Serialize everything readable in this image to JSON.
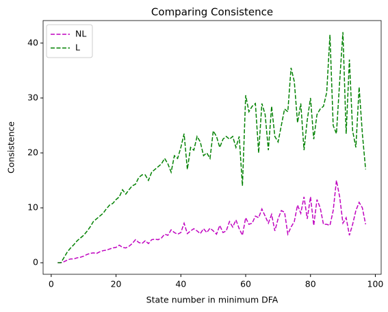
{
  "chart_data": {
    "type": "line",
    "title": "Comparing Consistence",
    "xlabel": "State number in minimum DFA",
    "ylabel": "Consistence",
    "x": [
      2,
      3,
      4,
      5,
      6,
      7,
      8,
      9,
      10,
      11,
      12,
      13,
      14,
      15,
      16,
      17,
      18,
      19,
      20,
      21,
      22,
      23,
      24,
      25,
      26,
      27,
      28,
      29,
      30,
      31,
      32,
      33,
      34,
      35,
      36,
      37,
      38,
      39,
      40,
      41,
      42,
      43,
      44,
      45,
      46,
      47,
      48,
      49,
      50,
      51,
      52,
      53,
      54,
      55,
      56,
      57,
      58,
      59,
      60,
      61,
      62,
      63,
      64,
      65,
      66,
      67,
      68,
      69,
      70,
      71,
      72,
      73,
      74,
      75,
      76,
      77,
      78,
      79,
      80,
      81,
      82,
      83,
      84,
      85,
      86,
      87,
      88,
      89,
      90,
      91,
      92,
      93,
      94,
      95,
      96,
      97
    ],
    "series": [
      {
        "name": "NL",
        "color": "#bf00bf",
        "values": [
          0,
          0,
          0.2,
          0.5,
          0.7,
          0.7,
          0.9,
          1,
          1.2,
          1.5,
          1.7,
          1.8,
          1.7,
          2,
          2.2,
          2.3,
          2.5,
          2.7,
          2.8,
          3.2,
          2.8,
          2.7,
          3,
          3.5,
          4.2,
          3.7,
          3.5,
          4,
          3.5,
          4.2,
          4.3,
          4.2,
          4.5,
          5.2,
          5,
          6,
          5.5,
          5.2,
          5.5,
          7.2,
          5.3,
          5.8,
          6.2,
          5.8,
          5.3,
          6.2,
          5.5,
          6.3,
          5.8,
          5.2,
          6.8,
          5.5,
          5.8,
          7.5,
          6.5,
          7.8,
          6.2,
          5,
          8.2,
          7,
          7.2,
          8.5,
          8.2,
          9.8,
          8.5,
          7.2,
          8.8,
          5.8,
          8,
          9.5,
          9.2,
          5.2,
          6.5,
          7.5,
          10.5,
          9,
          12,
          8,
          12,
          6.8,
          11.5,
          10,
          7,
          7,
          6.8,
          9.5,
          15,
          12,
          7.2,
          8.2,
          5,
          7,
          9.5,
          11,
          10,
          7
        ]
      },
      {
        "name": "L",
        "color": "#008000",
        "values": [
          0,
          0,
          1,
          2,
          2.7,
          3.3,
          4,
          4.5,
          5,
          5.7,
          6.5,
          7.5,
          8,
          8.5,
          9,
          9.8,
          10.5,
          10.8,
          11.5,
          12,
          13.3,
          12.5,
          13.3,
          14,
          14.3,
          15.5,
          16,
          16,
          15,
          16.5,
          17,
          17.5,
          18,
          19,
          18,
          16.5,
          19.5,
          19,
          21,
          23.5,
          17,
          21,
          20.5,
          23,
          22,
          19.5,
          20,
          19,
          24,
          23,
          21,
          22.5,
          23,
          22.5,
          23,
          21,
          23,
          14,
          30.5,
          27.5,
          28.5,
          29,
          20,
          29,
          27,
          20.5,
          28.5,
          23,
          22,
          25,
          28,
          27.5,
          35.5,
          33,
          25.5,
          29,
          20.5,
          26,
          30,
          22.5,
          27,
          28,
          28.5,
          31,
          41.5,
          25,
          23.5,
          33,
          42,
          23.5,
          37,
          24,
          21,
          32,
          23.5,
          17
        ]
      }
    ],
    "xlim": [
      -2.5,
      101.8
    ],
    "ylim": [
      -2.1,
      44.1
    ],
    "xticks": [
      0,
      20,
      40,
      60,
      80,
      100
    ],
    "yticks": [
      0,
      10,
      20,
      30,
      40
    ],
    "legend": "upper left",
    "dashed": true
  }
}
